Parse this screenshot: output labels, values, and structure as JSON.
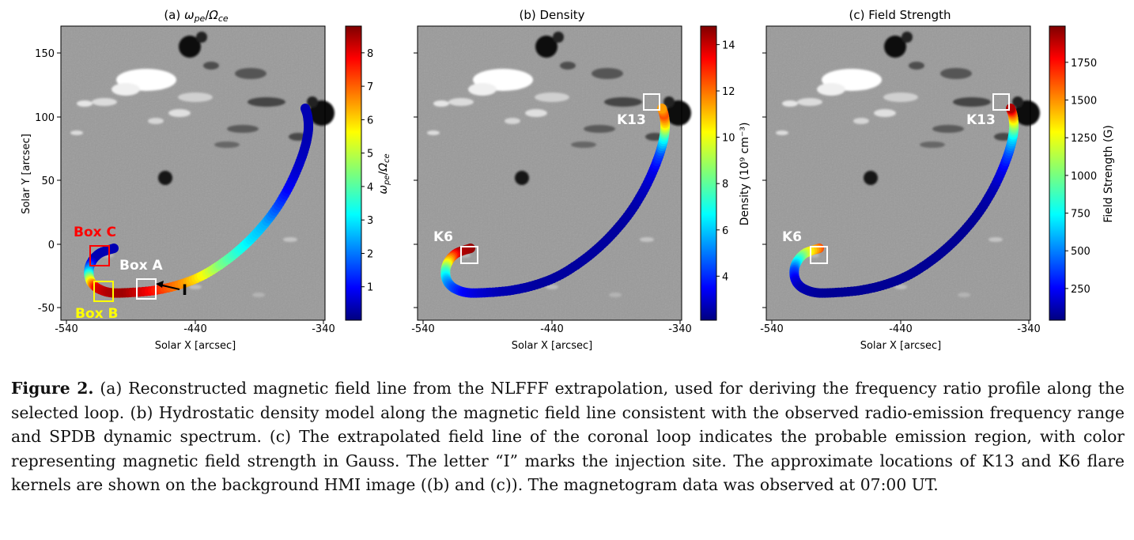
{
  "panels": [
    {
      "id": "a",
      "title_prefix": "(a) ",
      "title_math": "ωpe/Ωce",
      "xticks": [
        "-540",
        "-440",
        "-340"
      ],
      "yticks": [
        "150",
        "100",
        "50",
        "0",
        "-50"
      ],
      "xlabel": "Solar X [arcsec]",
      "ylabel": "Solar Y [arcsec]",
      "cbar_label": "ωpe/Ωce",
      "cbar_ticks": [
        "1",
        "2",
        "3",
        "4",
        "5",
        "6",
        "7",
        "8"
      ],
      "cbar_range": [
        0,
        8.8
      ],
      "annotations": [
        "Box C",
        "Box A",
        "Box B",
        "I"
      ]
    },
    {
      "id": "b",
      "title": "(b) Density",
      "xticks": [
        "-540",
        "-440",
        "-340"
      ],
      "xlabel": "Solar X [arcsec]",
      "cbar_label": "Density (10⁹ cm⁻³)",
      "cbar_ticks": [
        "4",
        "6",
        "8",
        "10",
        "12",
        "14"
      ],
      "cbar_range": [
        2.1,
        14.8
      ],
      "annotations": [
        "K13",
        "K6"
      ]
    },
    {
      "id": "c",
      "title": "(c) Field Strength",
      "xticks": [
        "-540",
        "-440",
        "-340"
      ],
      "xlabel": "Solar X [arcsec]",
      "cbar_label": "Field Strength (G)",
      "cbar_ticks": [
        "250",
        "500",
        "750",
        "1000",
        "1250",
        "1500",
        "1750"
      ],
      "cbar_range": [
        40,
        1990
      ],
      "annotations": [
        "K13",
        "K6"
      ]
    }
  ],
  "loop_color_profiles": {
    "a": [
      0.05,
      0.05,
      0.05,
      0.3,
      0.6,
      0.9,
      0.95,
      0.97,
      0.9,
      0.8,
      0.72,
      0.62,
      0.5,
      0.42,
      0.35,
      0.3,
      0.2,
      0.12,
      0.08,
      0.06,
      0.05,
      0.05,
      0.05,
      0.05
    ],
    "b": [
      0.98,
      0.95,
      0.7,
      0.45,
      0.3,
      0.2,
      0.12,
      0.08,
      0.05,
      0.04,
      0.03,
      0.03,
      0.03,
      0.03,
      0.03,
      0.03,
      0.04,
      0.06,
      0.1,
      0.2,
      0.4,
      0.65,
      0.8,
      0.72
    ],
    "c": [
      0.8,
      0.6,
      0.4,
      0.2,
      0.1,
      0.05,
      0.03,
      0.02,
      0.02,
      0.02,
      0.02,
      0.02,
      0.02,
      0.02,
      0.02,
      0.02,
      0.03,
      0.05,
      0.1,
      0.2,
      0.35,
      0.55,
      0.75,
      0.95
    ]
  },
  "colors": {
    "box_a": "#ffffff",
    "box_b": "#ffff00",
    "box_c": "#ff0000",
    "kernel_box": "#ffffff",
    "magnetogram_bg": "#9a9a9a"
  },
  "caption": {
    "label": "Figure 2.",
    "text": " (a) Reconstructed magnetic field line from the NLFFF extrapolation, used for deriving the frequency ratio profile along the selected loop. (b) Hydrostatic density model along the magnetic field line consistent with the observed radio-emission frequency range and SPDB dynamic spectrum. (c) The extrapolated field line of the coronal loop indicates the probable emission region, with color representing magnetic field strength in Gauss. The letter “I” marks the injection site. The approximate locations of K13 and K6 flare kernels are shown on the background HMI image ((b) and (c)). The magnetogram data was observed at 07:00 UT."
  }
}
